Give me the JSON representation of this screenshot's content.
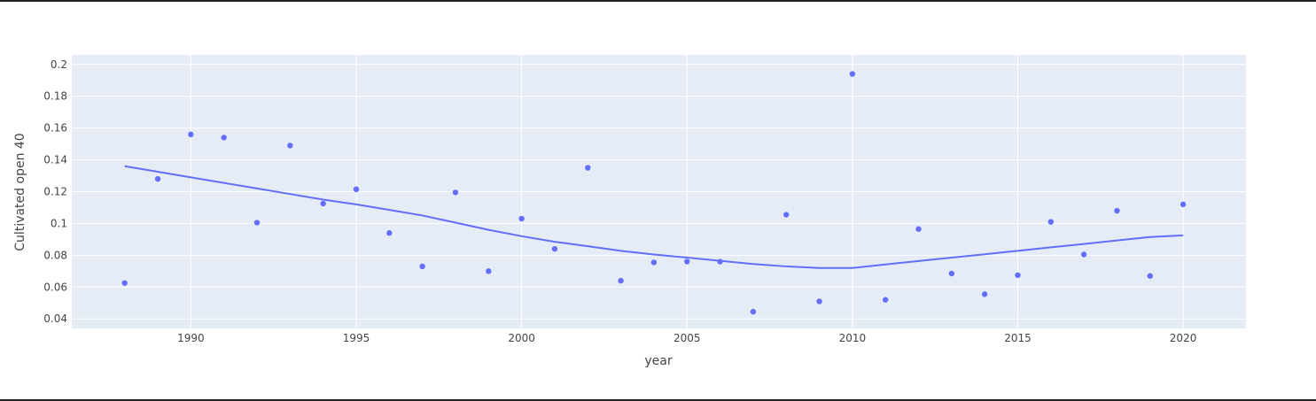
{
  "chart_data": {
    "type": "scatter",
    "title": "",
    "xlabel": "year",
    "ylabel": "Cultivated open 40",
    "xlim": [
      1986.4,
      2021.9
    ],
    "ylim": [
      0.034,
      0.206
    ],
    "x_ticks": [
      1990,
      1995,
      2000,
      2005,
      2010,
      2015,
      2020
    ],
    "x_tick_labels": [
      "1990",
      "1995",
      "2000",
      "2005",
      "2010",
      "2015",
      "2020"
    ],
    "y_ticks": [
      0.04,
      0.06,
      0.08,
      0.1,
      0.12,
      0.14,
      0.16,
      0.18,
      0.2
    ],
    "y_tick_labels": [
      "0.04",
      "0.06",
      "0.08",
      "0.1",
      "0.12",
      "0.14",
      "0.16",
      "0.18",
      "0.2"
    ],
    "grid": true,
    "colors": {
      "series": "#636efa",
      "plot_bg": "#e5ecf6",
      "grid": "#ffffff"
    },
    "series": [
      {
        "mode": "markers",
        "x": [
          1988,
          1989,
          1990,
          1991,
          1992,
          1993,
          1994,
          1995,
          1996,
          1997,
          1998,
          1999,
          2000,
          2001,
          2002,
          2003,
          2004,
          2005,
          2006,
          2007,
          2008,
          2009,
          2010,
          2011,
          2012,
          2013,
          2014,
          2015,
          2016,
          2017,
          2018,
          2019,
          2020
        ],
        "y": [
          0.0625,
          0.128,
          0.156,
          0.154,
          0.1005,
          0.149,
          0.1125,
          0.1215,
          0.094,
          0.073,
          0.1195,
          0.07,
          0.103,
          0.084,
          0.135,
          0.064,
          0.0755,
          0.076,
          0.076,
          0.0445,
          0.1055,
          0.051,
          0.194,
          0.052,
          0.0965,
          0.0685,
          0.0555,
          0.0675,
          0.101,
          0.0805,
          0.108,
          0.067,
          0.112
        ]
      },
      {
        "mode": "lines",
        "x": [
          1988,
          1989,
          1990,
          1991,
          1992,
          1993,
          1994,
          1995,
          1996,
          1997,
          1998,
          1999,
          2000,
          2001,
          2002,
          2003,
          2004,
          2005,
          2006,
          2007,
          2008,
          2009,
          2010,
          2011,
          2012,
          2013,
          2014,
          2015,
          2016,
          2017,
          2018,
          2019,
          2020
        ],
        "y": [
          0.136,
          0.1325,
          0.129,
          0.1255,
          0.122,
          0.1185,
          0.115,
          0.112,
          0.1085,
          0.105,
          0.1005,
          0.096,
          0.092,
          0.0885,
          0.0857,
          0.0828,
          0.0805,
          0.0785,
          0.0765,
          0.0745,
          0.073,
          0.072,
          0.072,
          0.0742,
          0.0764,
          0.0785,
          0.0806,
          0.0828,
          0.085,
          0.0871,
          0.0893,
          0.0915,
          0.0925
        ]
      }
    ]
  }
}
